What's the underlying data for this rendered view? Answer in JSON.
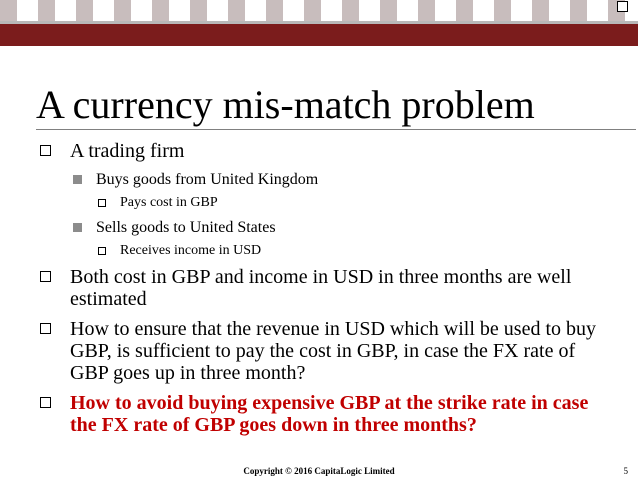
{
  "slide": {
    "title": "A currency mis-match problem",
    "footer": "Copyright © 2016 CapitaLogic Limited",
    "page_number": "5"
  },
  "bullets": [
    {
      "level": 1,
      "text": "A trading firm"
    },
    {
      "level": 2,
      "text": "Buys goods from United Kingdom"
    },
    {
      "level": 3,
      "text": "Pays cost in GBP"
    },
    {
      "level": 2,
      "text": "Sells goods to United States"
    },
    {
      "level": 3,
      "text": "Receives income in USD"
    },
    {
      "level": 1,
      "text": "Both cost in GBP and income in USD in three months are well estimated"
    },
    {
      "level": 1,
      "text": "How to ensure that the revenue in USD which will be used to buy GBP, is sufficient to pay the cost in GBP, in case the FX rate of GBP goes up in three month?"
    },
    {
      "level": 1,
      "text": "How to avoid buying expensive GBP at the strike rate in case the FX rate of GBP goes down in three months?",
      "highlight": true
    }
  ],
  "colors": {
    "header_band": "#7b1c1c",
    "header_checker": "#c8bdbd",
    "highlight_text": "#c00000",
    "square_bullet": "#8c8c8c"
  }
}
